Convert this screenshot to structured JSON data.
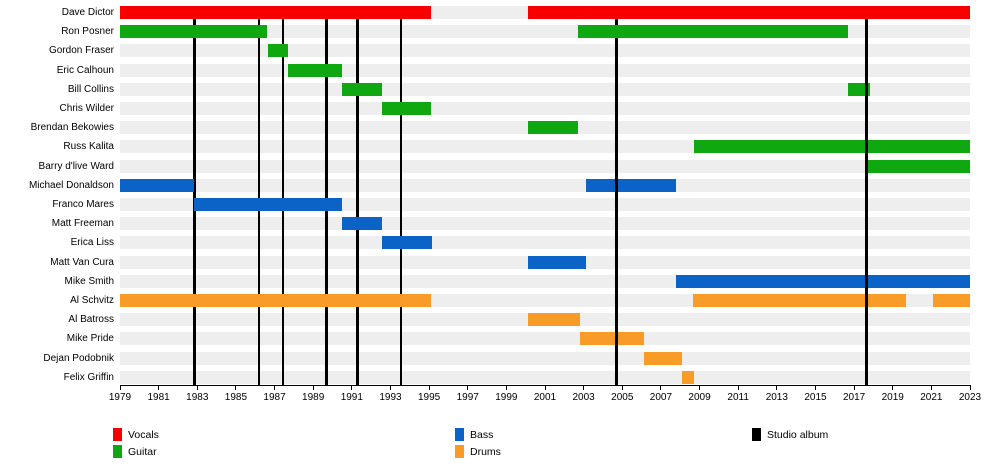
{
  "chart_data": {
    "type": "bar",
    "subtype": "band-membership-timeline-gantt",
    "title": "",
    "x_axis": {
      "min": 1979,
      "max": 2023,
      "label_step": 2,
      "tick_labels": [
        1979,
        1981,
        1983,
        1985,
        1987,
        1989,
        1991,
        1993,
        1995,
        1997,
        1999,
        2001,
        2003,
        2005,
        2007,
        2009,
        2011,
        2013,
        2015,
        2017,
        2019,
        2021,
        2023
      ]
    },
    "members": [
      {
        "name": "Dave Dictor",
        "instrument": "vocals",
        "periods": [
          {
            "from": 1979.0,
            "to": 1995.1
          },
          {
            "from": 2000.1,
            "to": 2023.0
          }
        ]
      },
      {
        "name": "Ron Posner",
        "instrument": "guitar",
        "periods": [
          {
            "from": 1979.0,
            "to": 1986.6
          },
          {
            "from": 2002.7,
            "to": 2016.7
          }
        ]
      },
      {
        "name": "Gordon Fraser",
        "instrument": "guitar",
        "periods": [
          {
            "from": 1986.65,
            "to": 1987.7
          }
        ]
      },
      {
        "name": "Eric Calhoun",
        "instrument": "guitar",
        "periods": [
          {
            "from": 1987.7,
            "to": 1990.5
          }
        ]
      },
      {
        "name": "Bill Collins",
        "instrument": "guitar",
        "periods": [
          {
            "from": 1990.5,
            "to": 1992.55
          },
          {
            "from": 2016.7,
            "to": 2017.8
          }
        ]
      },
      {
        "name": "Chris Wilder",
        "instrument": "guitar",
        "periods": [
          {
            "from": 1992.55,
            "to": 1995.1
          }
        ]
      },
      {
        "name": "Brendan Bekowies",
        "instrument": "guitar",
        "periods": [
          {
            "from": 2000.1,
            "to": 2002.7
          }
        ]
      },
      {
        "name": "Russ Kalita",
        "instrument": "guitar",
        "periods": [
          {
            "from": 2008.73,
            "to": 2023.0
          }
        ]
      },
      {
        "name": "Barry d'live Ward",
        "instrument": "guitar",
        "periods": [
          {
            "from": 2017.73,
            "to": 2023.0
          }
        ]
      },
      {
        "name": "Michael Donaldson",
        "instrument": "bass",
        "periods": [
          {
            "from": 1979.0,
            "to": 1982.85
          },
          {
            "from": 2003.1,
            "to": 2007.8
          }
        ]
      },
      {
        "name": "Franco Mares",
        "instrument": "bass",
        "periods": [
          {
            "from": 1982.85,
            "to": 1990.5
          }
        ]
      },
      {
        "name": "Matt Freeman",
        "instrument": "bass",
        "periods": [
          {
            "from": 1990.5,
            "to": 1992.55
          }
        ]
      },
      {
        "name": "Erica Liss",
        "instrument": "bass",
        "periods": [
          {
            "from": 1992.55,
            "to": 1995.15
          }
        ]
      },
      {
        "name": "Matt Van Cura",
        "instrument": "bass",
        "periods": [
          {
            "from": 2000.1,
            "to": 2003.1
          }
        ]
      },
      {
        "name": "Mike Smith",
        "instrument": "bass",
        "periods": [
          {
            "from": 2007.8,
            "to": 2023.0
          }
        ]
      },
      {
        "name": "Al Schvitz",
        "instrument": "drums",
        "periods": [
          {
            "from": 1979.0,
            "to": 1995.1
          },
          {
            "from": 2008.64,
            "to": 2019.7
          },
          {
            "from": 2021.1,
            "to": 2023.0
          }
        ]
      },
      {
        "name": "Al Batross",
        "instrument": "drums",
        "periods": [
          {
            "from": 2000.1,
            "to": 2002.8
          }
        ]
      },
      {
        "name": "Mike Pride",
        "instrument": "drums",
        "periods": [
          {
            "from": 2002.8,
            "to": 2006.1
          }
        ]
      },
      {
        "name": "Dejan Podobnik",
        "instrument": "drums",
        "periods": [
          {
            "from": 2006.1,
            "to": 2008.1
          }
        ]
      },
      {
        "name": "Felix Griffin",
        "instrument": "drums",
        "periods": [
          {
            "from": 2008.1,
            "to": 2008.7
          }
        ]
      }
    ],
    "studio_album_lines": [
      {
        "year": 1982.85,
        "layer": "back"
      },
      {
        "year": 1986.2,
        "layer": "back"
      },
      {
        "year": 1987.45,
        "layer": "back"
      },
      {
        "year": 1989.7,
        "layer": "back"
      },
      {
        "year": 1991.3,
        "layer": "back"
      },
      {
        "year": 1993.55,
        "layer": "back"
      },
      {
        "year": 2004.7,
        "layer": "front"
      },
      {
        "year": 2017.65,
        "layer": "front"
      }
    ],
    "legend_position": "bottom"
  },
  "colors": {
    "vocals": "#f80000",
    "guitar": "#10a810",
    "bass": "#0b63c8",
    "drums": "#f89c27",
    "album": "#000000",
    "band_bg": "#eeeeee"
  },
  "legend": {
    "vocals": "Vocals",
    "guitar": "Guitar",
    "bass": "Bass",
    "drums": "Drums",
    "album": "Studio album"
  }
}
